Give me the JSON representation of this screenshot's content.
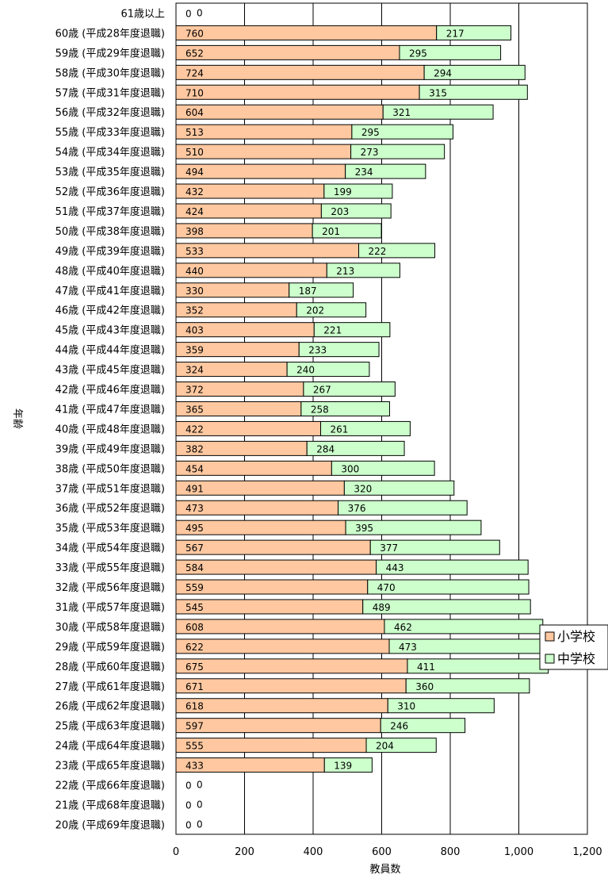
{
  "chart_data": {
    "type": "bar",
    "orientation": "horizontal",
    "stacked": true,
    "xlabel": "教員数",
    "ylabel": "年齢",
    "xlim": [
      0,
      1200
    ],
    "xticks": [
      "0",
      "200",
      "400",
      "600",
      "800",
      "1,000",
      "1,200"
    ],
    "grid": true,
    "legend_position": "right",
    "categories": [
      "61歳以上",
      "60歳 (平成28年度退職)",
      "59歳 (平成29年度退職)",
      "58歳 (平成30年度退職)",
      "57歳 (平成31年度退職)",
      "56歳 (平成32年度退職)",
      "55歳 (平成33年度退職)",
      "54歳 (平成34年度退職)",
      "53歳 (平成35年度退職)",
      "52歳 (平成36年度退職)",
      "51歳 (平成37年度退職)",
      "50歳 (平成38年度退職)",
      "49歳 (平成39年度退職)",
      "48歳 (平成40年度退職)",
      "47歳 (平成41年度退職)",
      "46歳 (平成42年度退職)",
      "45歳 (平成43年度退職)",
      "44歳 (平成44年度退職)",
      "43歳 (平成45年度退職)",
      "42歳 (平成46年度退職)",
      "41歳 (平成47年度退職)",
      "40歳 (平成48年度退職)",
      "39歳 (平成49年度退職)",
      "38歳 (平成50年度退職)",
      "37歳 (平成51年度退職)",
      "36歳 (平成52年度退職)",
      "35歳 (平成53年度退職)",
      "34歳 (平成54年度退職)",
      "33歳 (平成55年度退職)",
      "32歳 (平成56年度退職)",
      "31歳 (平成57年度退職)",
      "30歳 (平成58年度退職)",
      "29歳 (平成59年度退職)",
      "28歳 (平成60年度退職)",
      "27歳 (平成61年度退職)",
      "26歳 (平成62年度退職)",
      "25歳 (平成63年度退職)",
      "24歳 (平成64年度退職)",
      "23歳 (平成65年度退職)",
      "22歳 (平成66年度退職)",
      "21歳 (平成68年度退職)",
      "20歳 (平成69年度退職)"
    ],
    "series": [
      {
        "name": "小学校",
        "color": "#FFC8A0",
        "values": [
          0,
          760,
          652,
          724,
          710,
          604,
          513,
          510,
          494,
          432,
          424,
          398,
          533,
          440,
          330,
          352,
          403,
          359,
          324,
          372,
          365,
          422,
          382,
          454,
          491,
          473,
          495,
          567,
          584,
          559,
          545,
          608,
          622,
          675,
          671,
          618,
          597,
          555,
          433,
          0,
          0,
          0
        ]
      },
      {
        "name": "中学校",
        "color": "#CCFFCC",
        "values": [
          0,
          217,
          295,
          294,
          315,
          321,
          295,
          273,
          234,
          199,
          203,
          201,
          222,
          213,
          187,
          202,
          221,
          233,
          240,
          267,
          258,
          261,
          284,
          300,
          320,
          376,
          395,
          377,
          443,
          470,
          489,
          462,
          473,
          411,
          360,
          310,
          246,
          204,
          139,
          0,
          0,
          0
        ]
      }
    ]
  }
}
